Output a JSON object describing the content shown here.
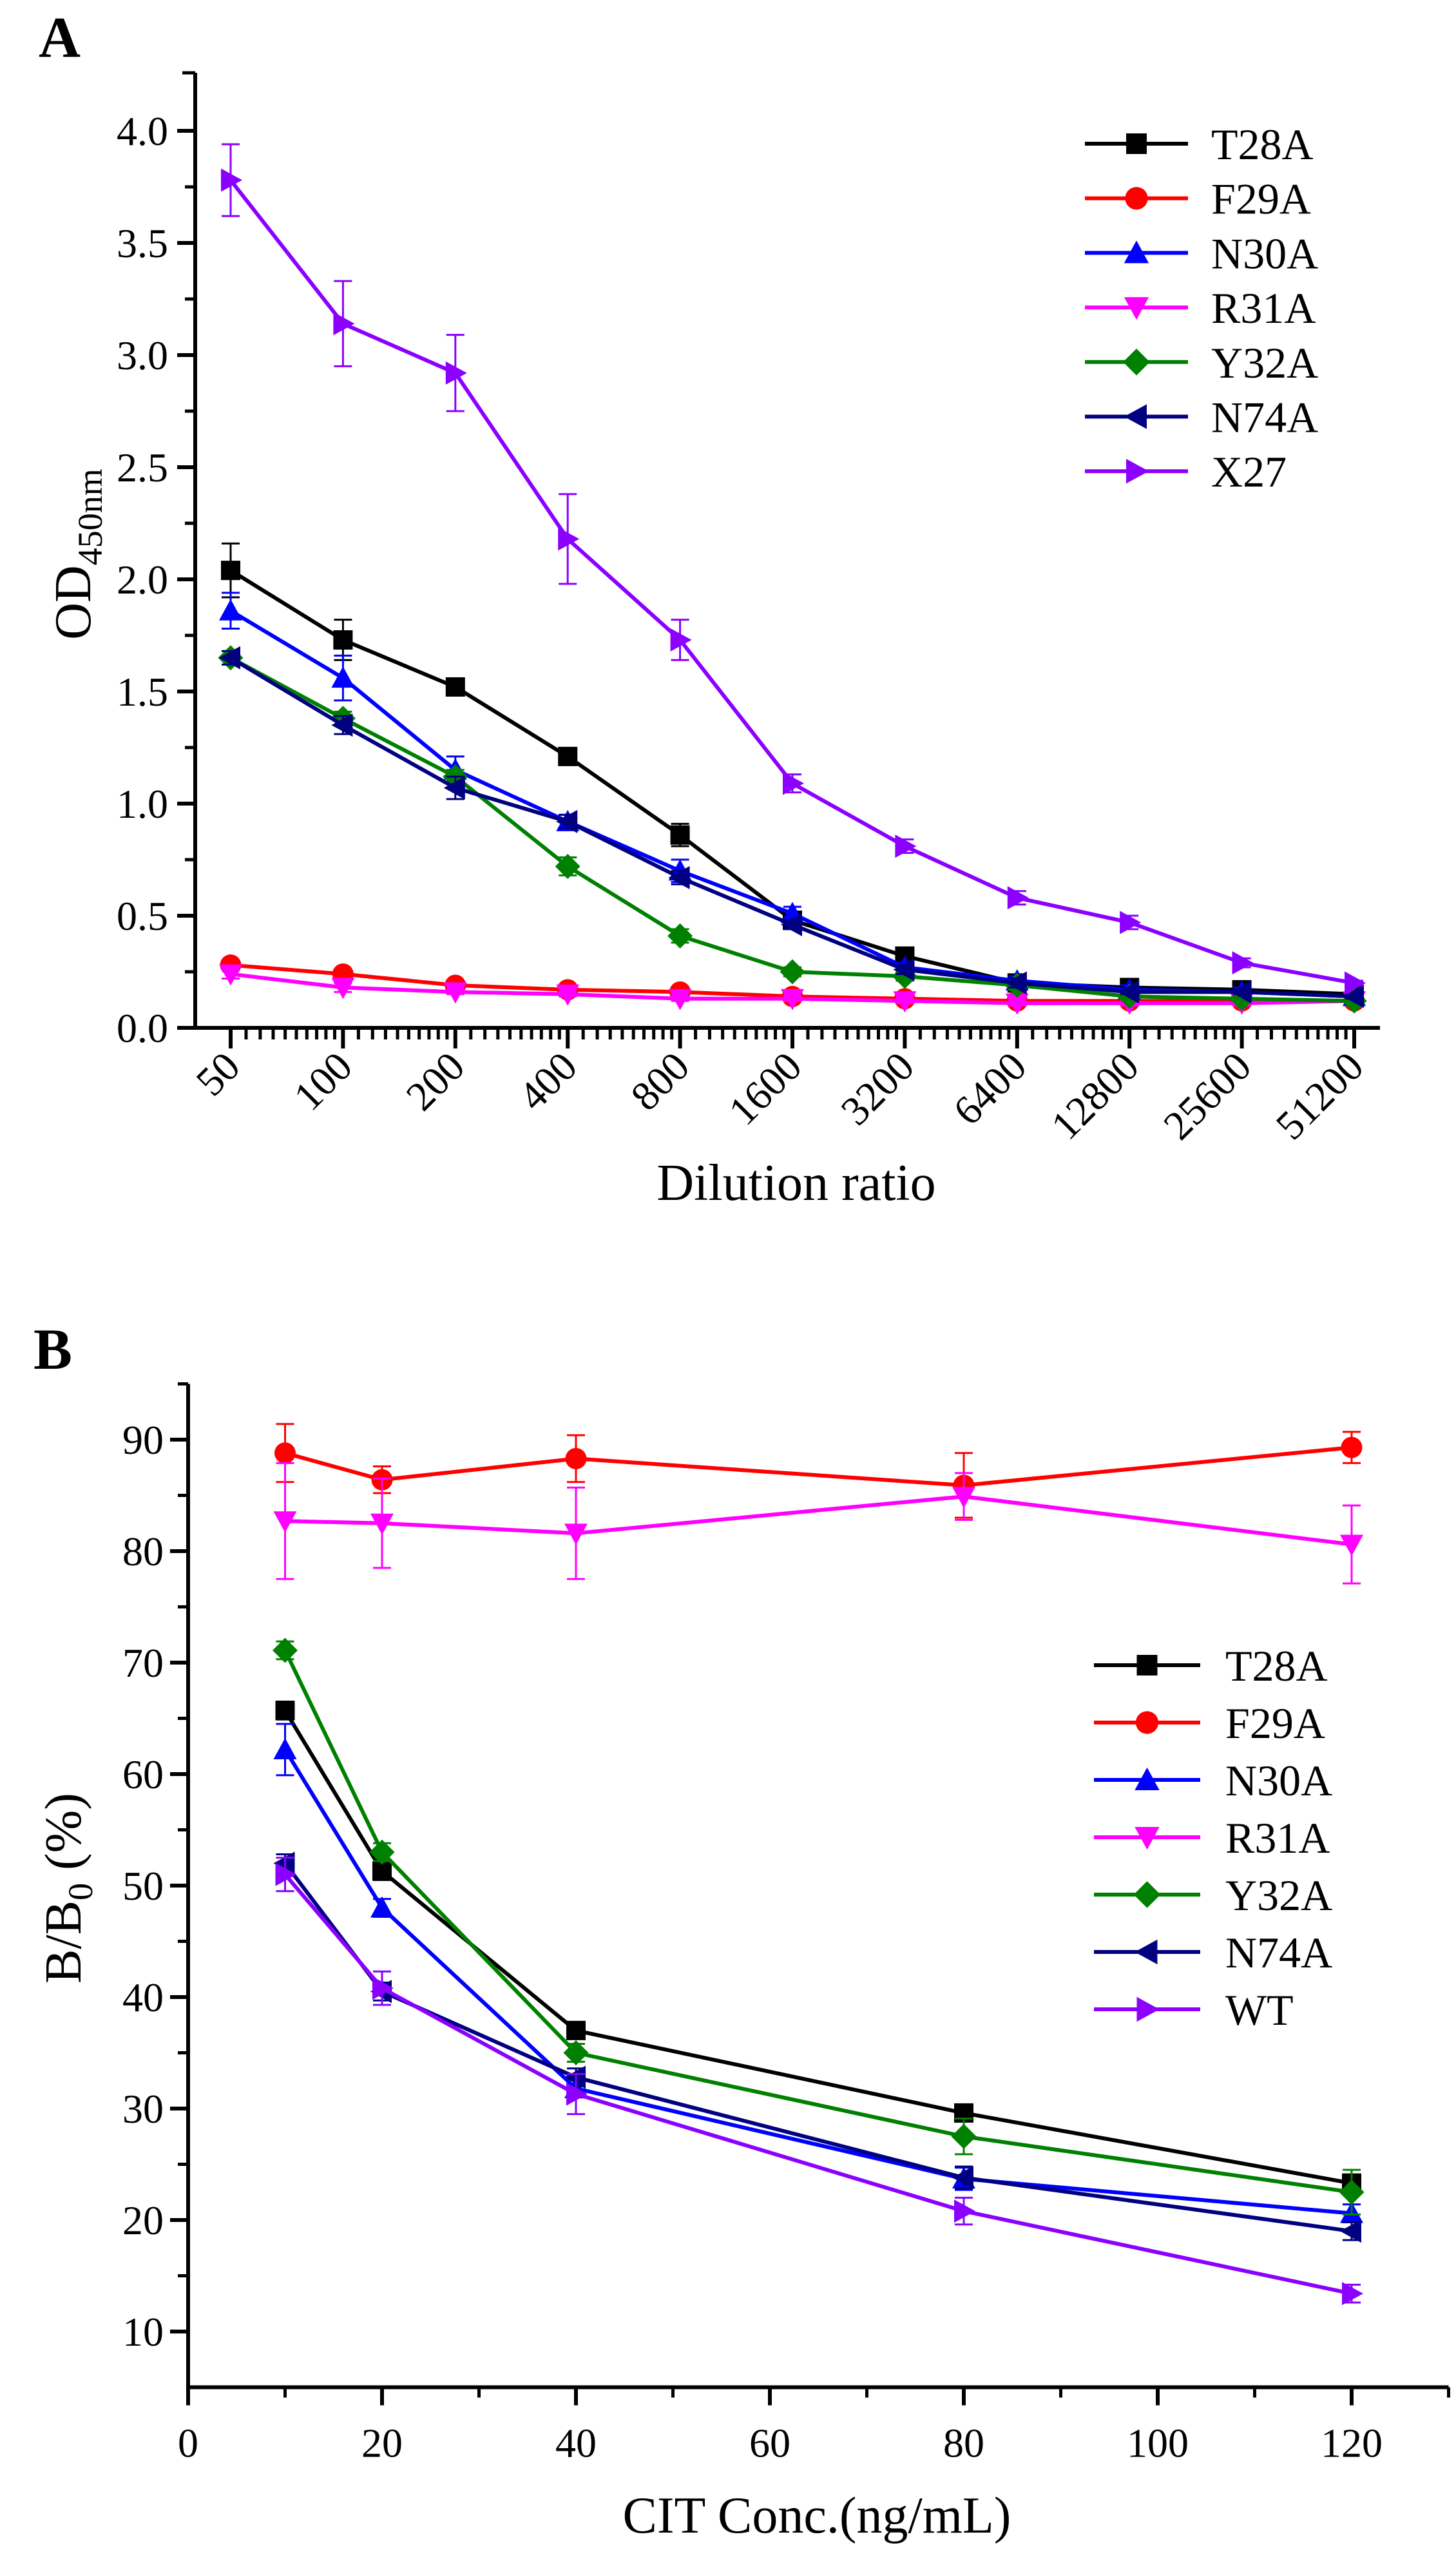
{
  "chart_data": [
    {
      "panel_label": "A",
      "type": "line",
      "xlabel": "Dilution ratio",
      "ylabel": "OD",
      "ylabel_sub": "450nm",
      "x_scale": "log2",
      "categories": [
        "50",
        "100",
        "200",
        "400",
        "800",
        "1600",
        "3200",
        "6400",
        "12800",
        "25600",
        "51200"
      ],
      "ylim": [
        0,
        4.25
      ],
      "yticks": [
        "0.0",
        "0.5",
        "1.0",
        "1.5",
        "2.0",
        "2.5",
        "3.0",
        "3.5",
        "4.0"
      ],
      "grid": false,
      "legend_position": "top-right",
      "series": [
        {
          "name": "T28A",
          "color": "#000000",
          "marker": "square",
          "values": [
            2.04,
            1.73,
            1.52,
            1.21,
            0.86,
            0.48,
            0.32,
            0.2,
            0.18,
            0.17,
            0.15
          ],
          "errors": [
            0.12,
            0.09,
            0.03,
            0.03,
            0.05,
            0.03,
            0.03,
            0.02,
            0.02,
            0.02,
            0.02
          ]
        },
        {
          "name": "F29A",
          "color": "#ff0000",
          "marker": "circle",
          "values": [
            0.28,
            0.24,
            0.19,
            0.17,
            0.16,
            0.14,
            0.13,
            0.12,
            0.12,
            0.12,
            0.12
          ],
          "errors": [
            0.02,
            0.02,
            0.02,
            0.02,
            0.02,
            0.02,
            0.01,
            0.01,
            0.01,
            0.01,
            0.01
          ]
        },
        {
          "name": "N30A",
          "color": "#0000ff",
          "marker": "triangle-up",
          "values": [
            1.86,
            1.56,
            1.15,
            0.92,
            0.7,
            0.51,
            0.27,
            0.21,
            0.17,
            0.16,
            0.14
          ],
          "errors": [
            0.08,
            0.1,
            0.06,
            0.03,
            0.05,
            0.03,
            0.02,
            0.02,
            0.02,
            0.02,
            0.01
          ]
        },
        {
          "name": "R31A",
          "color": "#ff00ff",
          "marker": "triangle-down",
          "values": [
            0.24,
            0.18,
            0.16,
            0.15,
            0.13,
            0.13,
            0.12,
            0.11,
            0.11,
            0.11,
            0.12
          ],
          "errors": [
            0.02,
            0.02,
            0.01,
            0.01,
            0.01,
            0.01,
            0.01,
            0.01,
            0.01,
            0.01,
            0.01
          ]
        },
        {
          "name": "Y32A",
          "color": "#008000",
          "marker": "diamond",
          "values": [
            1.65,
            1.38,
            1.12,
            0.72,
            0.41,
            0.25,
            0.23,
            0.19,
            0.14,
            0.13,
            0.12
          ],
          "errors": [
            0.03,
            0.03,
            0.03,
            0.04,
            0.03,
            0.02,
            0.02,
            0.02,
            0.01,
            0.01,
            0.01
          ]
        },
        {
          "name": "N74A",
          "color": "#000080",
          "marker": "triangle-left",
          "values": [
            1.65,
            1.35,
            1.07,
            0.92,
            0.67,
            0.46,
            0.26,
            0.2,
            0.16,
            0.16,
            0.14
          ],
          "errors": [
            0.03,
            0.04,
            0.05,
            0.03,
            0.03,
            0.02,
            0.02,
            0.02,
            0.01,
            0.01,
            0.01
          ]
        },
        {
          "name": "X27",
          "color": "#8b00ff",
          "marker": "triangle-right",
          "values": [
            3.78,
            3.14,
            2.92,
            2.18,
            1.73,
            1.09,
            0.81,
            0.58,
            0.47,
            0.29,
            0.2
          ],
          "errors": [
            0.16,
            0.19,
            0.17,
            0.2,
            0.09,
            0.04,
            0.03,
            0.03,
            0.03,
            0.02,
            0.01
          ]
        }
      ]
    },
    {
      "panel_label": "B",
      "type": "line",
      "xlabel": "CIT Conc.(ng/mL)",
      "ylabel": "B/B",
      "ylabel_sub": "0",
      "ylabel_suffix": " (%)",
      "x": [
        10,
        20,
        40,
        80,
        120
      ],
      "xlim": [
        0,
        130
      ],
      "ylim": [
        5,
        95
      ],
      "xticks": [
        "0",
        "20",
        "40",
        "60",
        "80",
        "100",
        "120"
      ],
      "yticks": [
        "10",
        "20",
        "30",
        "40",
        "50",
        "60",
        "70",
        "80",
        "90"
      ],
      "grid": false,
      "legend_position": "center-right",
      "series": [
        {
          "name": "T28A",
          "color": "#000000",
          "marker": "square",
          "values": [
            65.7,
            51.3,
            37.0,
            29.6,
            23.3
          ],
          "errors": [
            0.8,
            0.8,
            0.6,
            0.6,
            0.8
          ]
        },
        {
          "name": "F29A",
          "color": "#ff0000",
          "marker": "circle",
          "values": [
            88.8,
            86.4,
            88.3,
            85.9,
            89.3
          ],
          "errors": [
            2.6,
            1.2,
            2.1,
            2.9,
            1.4
          ]
        },
        {
          "name": "N30A",
          "color": "#0000ff",
          "marker": "triangle-up",
          "values": [
            62.2,
            48.0,
            31.8,
            23.7,
            20.6
          ],
          "errors": [
            2.3,
            0.8,
            0.8,
            1.0,
            0.8
          ]
        },
        {
          "name": "R31A",
          "color": "#ff00ff",
          "marker": "triangle-down",
          "values": [
            82.7,
            82.5,
            81.6,
            84.9,
            80.6
          ],
          "errors": [
            5.2,
            4.0,
            4.1,
            2.1,
            3.5
          ]
        },
        {
          "name": "Y32A",
          "color": "#008000",
          "marker": "diamond",
          "values": [
            71.1,
            53.0,
            35.0,
            27.5,
            22.5
          ],
          "errors": [
            0.8,
            0.8,
            0.8,
            1.6,
            2.0
          ]
        },
        {
          "name": "N74A",
          "color": "#000080",
          "marker": "triangle-left",
          "values": [
            52.0,
            40.5,
            32.8,
            23.8,
            19.0
          ],
          "errors": [
            0.8,
            0.8,
            0.8,
            1.0,
            0.8
          ]
        },
        {
          "name": "WT",
          "color": "#8b00ff",
          "marker": "triangle-right",
          "values": [
            51.0,
            40.8,
            31.3,
            20.8,
            13.4
          ],
          "errors": [
            1.5,
            1.5,
            1.8,
            1.2,
            0.8
          ]
        }
      ]
    }
  ]
}
